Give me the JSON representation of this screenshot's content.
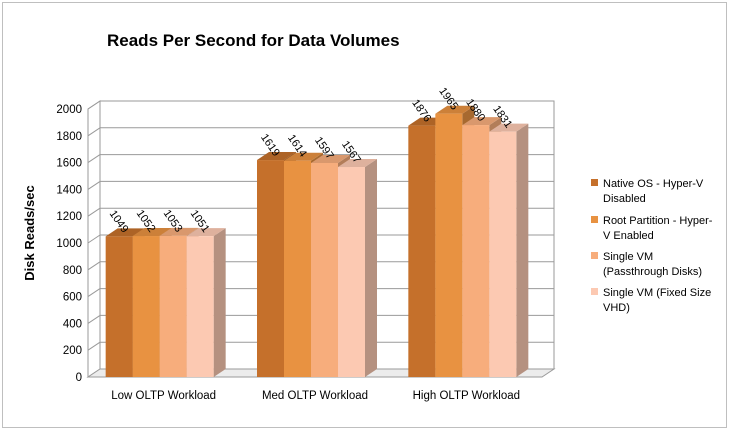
{
  "chart_data": {
    "type": "bar",
    "title": "Reads Per Second for Data Volumes",
    "ylabel": "Disk Reads/sec",
    "xlabel": "",
    "ylim": [
      0,
      2000
    ],
    "yticks": [
      0,
      200,
      400,
      600,
      800,
      1000,
      1200,
      1400,
      1600,
      1800,
      2000
    ],
    "grid": true,
    "legend_position": "right",
    "categories": [
      "Low OLTP Workload",
      "Med OLTP Workload",
      "High OLTP Workload"
    ],
    "series": [
      {
        "name": "Native OS - Hyper-V Disabled",
        "legend_lines": [
          "Native OS - Hyper-V",
          "Disabled"
        ],
        "color": "#c5702b",
        "values": [
          1049,
          1619,
          1876
        ]
      },
      {
        "name": "Root Partition - Hyper-V Enabled",
        "legend_lines": [
          "Root Partition - Hyper-",
          "V Enabled"
        ],
        "color": "#e89241",
        "values": [
          1052,
          1614,
          1965
        ]
      },
      {
        "name": "Single VM (Passthrough Disks)",
        "legend_lines": [
          "Single VM",
          "(Passthrough Disks)"
        ],
        "color": "#f7ad7c",
        "values": [
          1053,
          1597,
          1880
        ]
      },
      {
        "name": "Single VM (Fixed Size VHD)",
        "legend_lines": [
          "Single VM (Fixed Size",
          "VHD)"
        ],
        "color": "#fcc9b2",
        "values": [
          1051,
          1567,
          1831
        ]
      }
    ]
  }
}
